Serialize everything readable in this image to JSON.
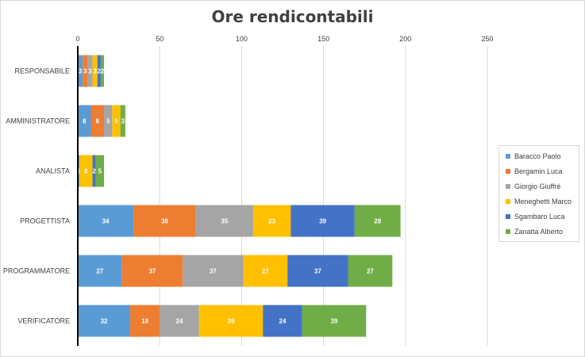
{
  "chart_data": {
    "type": "bar",
    "orientation": "horizontal",
    "stacked": true,
    "title": "Ore rendicontabili",
    "xlim": [
      0,
      250
    ],
    "x_ticks": [
      0,
      50,
      100,
      150,
      200,
      250
    ],
    "grid": true,
    "legend_position": "right",
    "categories": [
      "RESPONSABILE",
      "AMMINISTRATORE",
      "ANALISTA",
      "PROGETTISTA",
      "PROGRAMMATORE",
      "VERIFICATORE"
    ],
    "series": [
      {
        "name": "Baracco Paolo",
        "color": "#5b9bd5",
        "values": [
          3,
          8,
          1,
          34,
          27,
          32
        ]
      },
      {
        "name": "Bergamin Luca",
        "color": "#ed7d31",
        "values": [
          3,
          8,
          0,
          38,
          37,
          18
        ]
      },
      {
        "name": "Giorgio Giuffré",
        "color": "#a5a5a5",
        "values": [
          3,
          5,
          0,
          35,
          37,
          24
        ]
      },
      {
        "name": "Meneghetti Marco",
        "color": "#ffc000",
        "values": [
          3,
          5,
          8,
          23,
          27,
          39
        ]
      },
      {
        "name": "Sgambaro Luca",
        "color": "#4472c4",
        "values": [
          2,
          0,
          2,
          39,
          37,
          24
        ]
      },
      {
        "name": "Zanatta Alberto",
        "color": "#70ad47",
        "values": [
          2,
          3,
          5,
          28,
          27,
          39
        ]
      }
    ]
  }
}
